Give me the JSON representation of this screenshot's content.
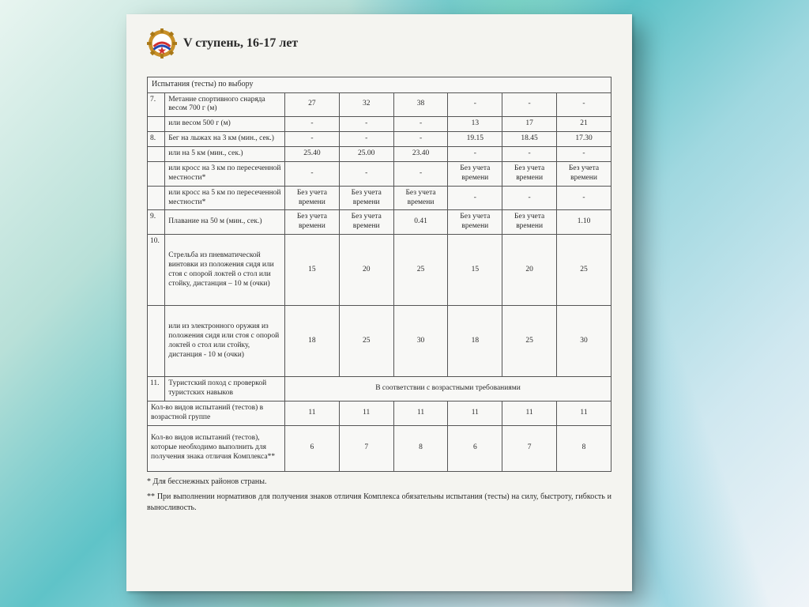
{
  "title": "V ступень, 16-17 лет",
  "section_header": "Испытания (тесты) по выбору",
  "rows": [
    {
      "n": "7.",
      "label": "Метание спортивного снаряда весом 700 г (м)",
      "v": [
        "27",
        "32",
        "38",
        "-",
        "-",
        "-"
      ]
    },
    {
      "n": "",
      "label": "или весом 500 г (м)",
      "v": [
        "-",
        "-",
        "-",
        "13",
        "17",
        "21"
      ]
    },
    {
      "n": "8.",
      "label": "Бег на лыжах на 3 км (мин., сек.)",
      "v": [
        "-",
        "-",
        "-",
        "19.15",
        "18.45",
        "17.30"
      ]
    },
    {
      "n": "",
      "label": "или на 5 км (мин., сек.)",
      "v": [
        "25.40",
        "25.00",
        "23.40",
        "-",
        "-",
        "-"
      ]
    },
    {
      "n": "",
      "label": "или кросс на 3 км по пересеченной местности*",
      "v": [
        "-",
        "-",
        "-",
        "Без учета времени",
        "Без учета времени",
        "Без учета времени"
      ]
    },
    {
      "n": "",
      "label": "или кросс на 5 км по пересеченной местности*",
      "v": [
        "Без учета времени",
        "Без учета времени",
        "Без учета времени",
        "-",
        "-",
        "-"
      ]
    },
    {
      "n": "9.",
      "label": "Плавание на 50 м (мин., сек.)",
      "v": [
        "Без учета времени",
        "Без учета времени",
        "0.41",
        "Без учета времени",
        "Без учета времени",
        "1.10"
      ]
    },
    {
      "n": "10.",
      "label": "Стрельба из пневматической винтовки из положения сидя или стоя с опорой локтей о стол или стойку, дистанция – 10 м (очки)",
      "v": [
        "15",
        "20",
        "25",
        "15",
        "20",
        "25"
      ],
      "tall": true
    },
    {
      "n": "",
      "label": "или из электронного оружия из положения сидя или стоя с опорой локтей о стол или стойку, дистанция - 10 м (очки)",
      "v": [
        "18",
        "25",
        "30",
        "18",
        "25",
        "30"
      ],
      "tall": true
    },
    {
      "n": "11.",
      "label": "Туристский поход с проверкой туристских навыков",
      "merged": "В соответствии с возрастными требованиями"
    }
  ],
  "summary1": {
    "label": "Кол-во видов испытаний (тестов) в возрастной группе",
    "v": [
      "11",
      "11",
      "11",
      "11",
      "11",
      "11"
    ]
  },
  "summary2": {
    "label": "Кол-во видов испытаний (тестов), которые необходимо выполнить для получения знака отличия Комплекса**",
    "v": [
      "6",
      "7",
      "8",
      "6",
      "7",
      "8"
    ]
  },
  "footnote1": "* Для бесснежных районов страны.",
  "footnote2": "** При выполнении нормативов для получения знаков отличия Комплекса обязательны испытания (тесты) на силу, быстроту, гибкость и выносливость.",
  "badge": {
    "gear_color": "#c89028",
    "inner_color": "#ffffff",
    "stripe1": "#d03030",
    "stripe2": "#2048b0",
    "star_color": "#d03030"
  }
}
